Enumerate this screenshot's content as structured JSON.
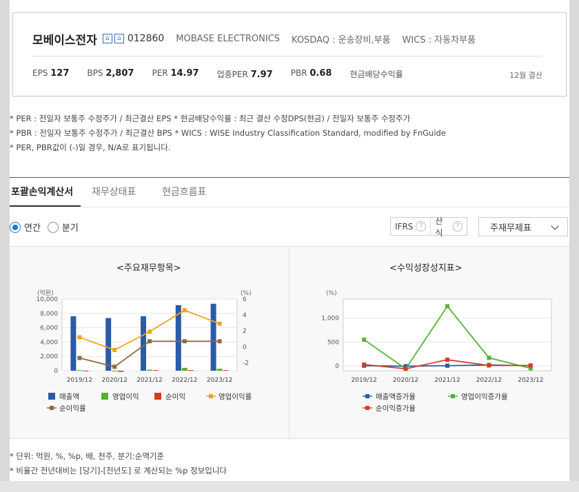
{
  "company": {
    "name": "모베이스전자",
    "code": "012860",
    "english_name": "MOBASE ELECTRONICS",
    "market": "KOSDAQ : 운송장비,부품",
    "wics": "WICS : 자동차부품",
    "settlement": "12월 결산"
  },
  "metrics": [
    {
      "label": "EPS",
      "value": "127"
    },
    {
      "label": "BPS",
      "value": "2,807"
    },
    {
      "label": "PER",
      "value": "14.97"
    },
    {
      "label": "업종PER",
      "value": "7.97"
    },
    {
      "label": "PBR",
      "value": "0.68"
    },
    {
      "label": "현금배당수익률",
      "value": ""
    }
  ],
  "notes": [
    "* PER : 전일자 보통주 수정주가 / 최근결산 EPS * 현금배당수익률 : 최근 결산 수정DPS(현금) / 전일자 보통주 수정주가",
    "* PBR : 전일자 보통주 수정주가 / 최근결산 BPS * WICS : WISE Industry Classification Standard, modified by FnGuide",
    "* PER, PBR값이 (-)일 경우, N/A로 표기됩니다."
  ],
  "tabs": [
    "포괄손익계산서",
    "재무상태표",
    "현금흐름표"
  ],
  "period_options": {
    "annual": "연간",
    "quarter": "분기"
  },
  "options": {
    "ifrs": "IFRS",
    "formula": "산식",
    "q": "?"
  },
  "select": {
    "value": "주재무제표"
  },
  "chart_left": {
    "title": "<주요재무항목>",
    "left_unit": "(억원)",
    "right_unit": "(%)",
    "left_ticks": [
      "10,000",
      "8,000",
      "6,000",
      "4,000",
      "2,000",
      "0"
    ],
    "right_ticks": [
      "6",
      "4",
      "2",
      "0",
      "-2"
    ],
    "legend": [
      "매출액",
      "영업이익",
      "순이익",
      "영업이익률",
      "순이익률"
    ]
  },
  "chart_right": {
    "title": "<수익성장성지표>",
    "unit": "(%)",
    "ticks": [
      "1,000",
      "500",
      "0"
    ],
    "legend": [
      "매출액증가율",
      "영업이익증가율",
      "순이익증가율"
    ]
  },
  "chart_data": [
    {
      "type": "bar",
      "title": "<주요재무항목>",
      "categories": [
        "2019/12",
        "2020/12",
        "2021/12",
        "2022/12",
        "2023/12"
      ],
      "ylabel": "(억원)",
      "y2label": "(%)",
      "ylim": [
        0,
        10000
      ],
      "y2lim": [
        -3,
        6
      ],
      "series": [
        {
          "name": "매출액",
          "type": "bar",
          "axis": "left",
          "color": "#2b5ba8",
          "values": [
            7600,
            7350,
            7600,
            9150,
            9350
          ]
        },
        {
          "name": "영업이익",
          "type": "bar",
          "axis": "left",
          "color": "#55b234",
          "values": [
            90,
            -30,
            150,
            400,
            280
          ]
        },
        {
          "name": "순이익",
          "type": "bar",
          "axis": "left",
          "color": "#d73b27",
          "values": [
            -80,
            -160,
            80,
            90,
            80
          ]
        },
        {
          "name": "영업이익률",
          "type": "line",
          "axis": "right",
          "color": "#f4a11c",
          "values": [
            1.2,
            -0.4,
            1.9,
            4.6,
            2.9
          ]
        },
        {
          "name": "순이익률",
          "type": "line",
          "axis": "right",
          "color": "#8b6b3f",
          "values": [
            -1.4,
            -2.5,
            0.7,
            0.7,
            0.7
          ]
        }
      ],
      "grid": true,
      "legend": "bottom"
    },
    {
      "type": "line",
      "title": "<수익성장성지표>",
      "categories": [
        "2019/12",
        "2020/12",
        "2021/12",
        "2022/12",
        "2023/12"
      ],
      "ylabel": "(%)",
      "ylim": [
        -100,
        1400
      ],
      "series": [
        {
          "name": "매출액증가율",
          "color": "#2b5ba8",
          "values": [
            5,
            -5,
            5,
            20,
            5
          ]
        },
        {
          "name": "영업이익증가율",
          "color": "#55b234",
          "values": [
            550,
            -60,
            1250,
            170,
            -50
          ]
        },
        {
          "name": "순이익증가율",
          "color": "#d73b27",
          "values": [
            30,
            -60,
            130,
            10,
            10
          ]
        }
      ],
      "grid": true,
      "legend": "bottom"
    }
  ],
  "footnotes": [
    "* 단위: 억원, %, %p, 배, 천주, 분기:순액기준",
    "* 비율간 전년대비는 [당기]-[전년도] 로 계산되는 %p 정보입니다"
  ]
}
